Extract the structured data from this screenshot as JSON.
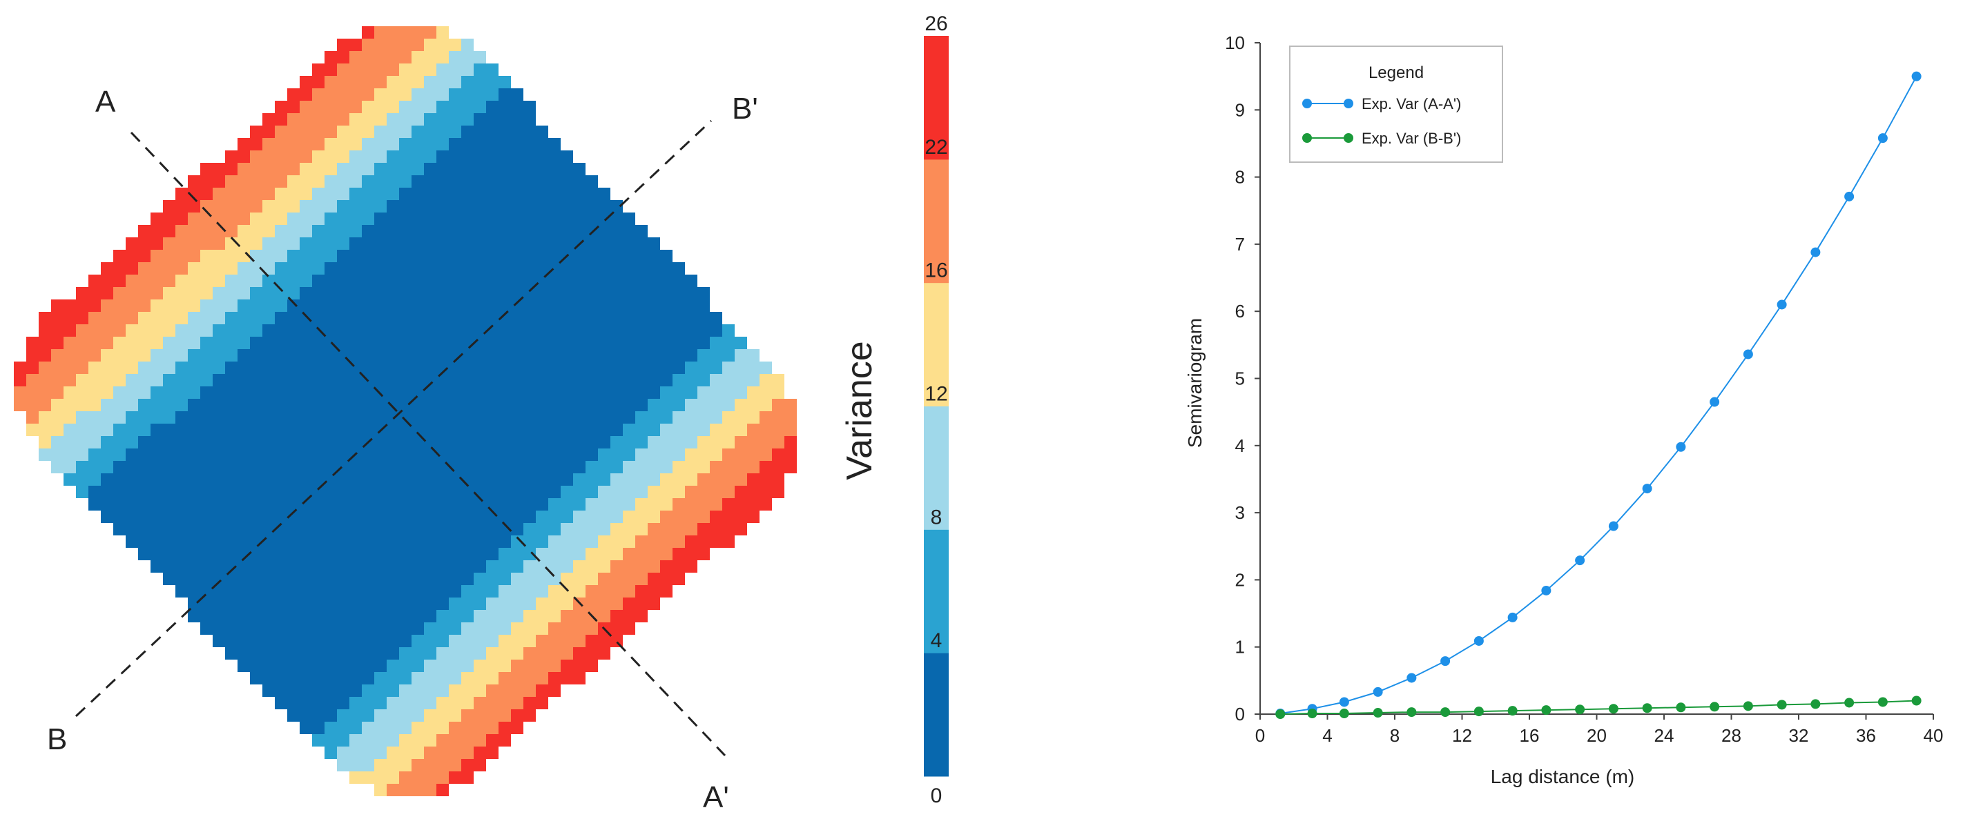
{
  "chart_data": [
    {
      "type": "heatmap",
      "title": "",
      "section_labels": {
        "A": "A",
        "A_prime": "A'",
        "B": "B",
        "B_prime": "B'"
      },
      "colorbar": {
        "label": "Variance",
        "ticks": [
          "0",
          "4",
          "8",
          "12",
          "16",
          "22",
          "26"
        ],
        "bins": [
          {
            "from": 0,
            "to": 4,
            "color": "#0868ae"
          },
          {
            "from": 4,
            "to": 8,
            "color": "#2aa3d1"
          },
          {
            "from": 8,
            "to": 12,
            "color": "#9fd8ea"
          },
          {
            "from": 12,
            "to": 16,
            "color": "#fddf8c"
          },
          {
            "from": 16,
            "to": 22,
            "color": "#fb8c57"
          },
          {
            "from": 22,
            "to": 26,
            "color": "#f5302a"
          }
        ]
      }
    },
    {
      "type": "line",
      "title": "",
      "xlabel": "Lag distance (m)",
      "ylabel": "Semivariogram",
      "xlim": [
        0,
        40
      ],
      "ylim": [
        0,
        10
      ],
      "xticks": [
        "0",
        "4",
        "8",
        "12",
        "16",
        "20",
        "24",
        "28",
        "32",
        "36",
        "40"
      ],
      "yticks": [
        "0",
        "1",
        "2",
        "3",
        "4",
        "5",
        "6",
        "7",
        "8",
        "9",
        "10"
      ],
      "legend": {
        "title": "Legend",
        "position": "top-left"
      },
      "x": [
        1.2,
        3.1,
        5.0,
        7.0,
        9.0,
        11.0,
        13.0,
        15.0,
        17.0,
        19.0,
        21.0,
        23.0,
        25.0,
        27.0,
        29.0,
        31.0,
        33.0,
        35.0,
        37.0,
        39.0
      ],
      "series": [
        {
          "name": "Exp. Var (A-A')",
          "color": "#1e90e8",
          "values": [
            0.01,
            0.08,
            0.18,
            0.33,
            0.54,
            0.79,
            1.09,
            1.44,
            1.84,
            2.29,
            2.8,
            3.36,
            3.98,
            4.65,
            5.36,
            6.1,
            6.88,
            7.71,
            8.58,
            9.5
          ]
        },
        {
          "name": "Exp. Var (B-B')",
          "color": "#1a9a3a",
          "values": [
            0.0,
            0.01,
            0.01,
            0.02,
            0.03,
            0.03,
            0.04,
            0.05,
            0.06,
            0.07,
            0.08,
            0.09,
            0.1,
            0.11,
            0.12,
            0.14,
            0.15,
            0.17,
            0.18,
            0.2
          ]
        }
      ]
    }
  ]
}
